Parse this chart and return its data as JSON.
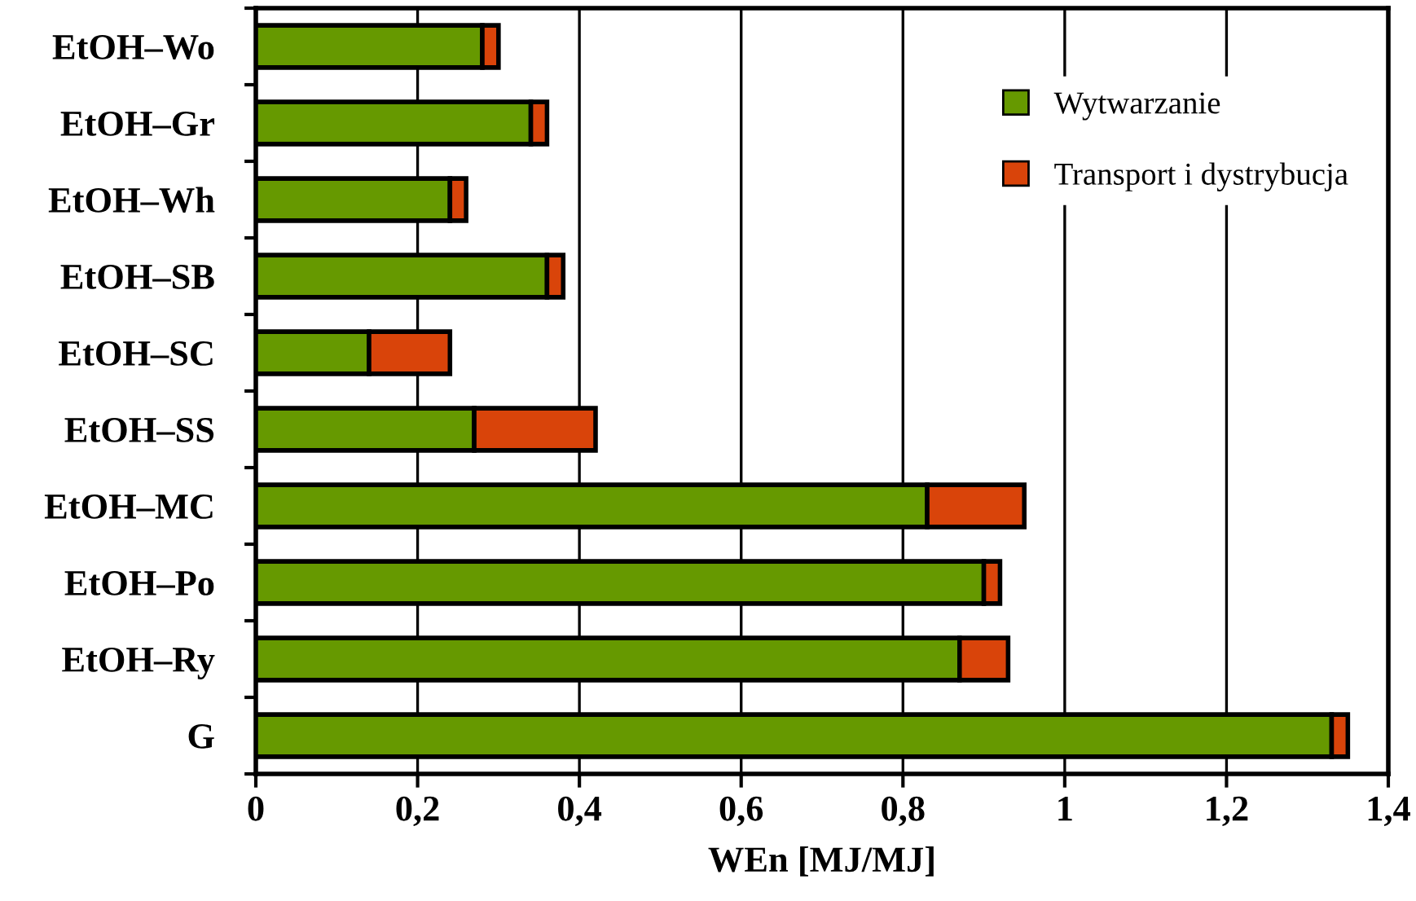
{
  "chart_data": {
    "type": "bar",
    "orientation": "horizontal",
    "stacked": true,
    "xlabel": "WEn [MJ/MJ]",
    "categories": [
      "EtOH–Wo",
      "EtOH–Gr",
      "EtOH–Wh",
      "EtOH–SB",
      "EtOH–SC",
      "EtOH–SS",
      "EtOH–MC",
      "EtOH–Po",
      "EtOH–Ry",
      "G"
    ],
    "series": [
      {
        "name": "Wytwarzanie",
        "color": "#669900",
        "values": [
          0.28,
          0.34,
          0.24,
          0.36,
          0.14,
          0.27,
          0.83,
          0.9,
          0.87,
          1.33
        ]
      },
      {
        "name": "Transport i dystrybucja",
        "color": "#d9440a",
        "values": [
          0.02,
          0.02,
          0.02,
          0.02,
          0.1,
          0.15,
          0.12,
          0.02,
          0.06,
          0.02
        ]
      }
    ],
    "xlim": [
      0,
      1.4
    ],
    "xticks": [
      0,
      {
        "value": 0.2,
        "label": "0,2"
      },
      {
        "value": 0.4,
        "label": "0,4"
      },
      {
        "value": 0.6,
        "label": "0,6"
      },
      {
        "value": 0.8,
        "label": "0,8"
      },
      1,
      {
        "value": 1.2,
        "label": "1,2"
      },
      {
        "value": 1.4,
        "label": "1,4"
      }
    ],
    "grid": "x",
    "legend": "top right"
  }
}
